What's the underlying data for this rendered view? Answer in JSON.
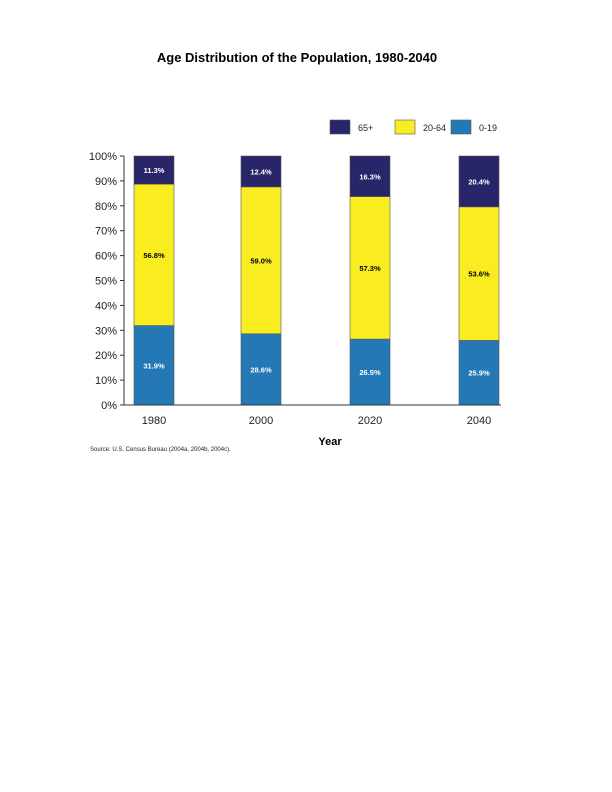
{
  "colors": {
    "65+": "#282668",
    "20-64": "#f9ec20",
    "0-19": "#2378b5",
    "axis": "#333333"
  },
  "chart_data": {
    "type": "bar",
    "stacked": true,
    "title": "Age Distribution of the Population, 1980-2040",
    "xlabel": "Year",
    "ylabel": "",
    "ylim": [
      0,
      100
    ],
    "yticks": [
      "0%",
      "10%",
      "20%",
      "30%",
      "40%",
      "50%",
      "60%",
      "70%",
      "80%",
      "90%",
      "100%"
    ],
    "categories": [
      "1980",
      "2000",
      "2020",
      "2040"
    ],
    "legend_position": "top-right",
    "series": [
      {
        "name": "0-19",
        "values": [
          31.9,
          28.6,
          26.5,
          25.9
        ],
        "labels": [
          "31.9%",
          "28.6%",
          "26.5%",
          "25.9%"
        ]
      },
      {
        "name": "20-64",
        "values": [
          56.8,
          59.0,
          57.3,
          53.6
        ],
        "labels": [
          "56.8%",
          "59.0%",
          "57.3%",
          "53.6%"
        ]
      },
      {
        "name": "65+",
        "values": [
          11.3,
          12.4,
          16.3,
          20.4
        ],
        "labels": [
          "11.3%",
          "12.4%",
          "16.3%",
          "20.4%"
        ]
      }
    ],
    "legend_order": [
      "65+",
      "20-64",
      "0-19"
    ],
    "source": "Source: U.S. Census Bureau (2004a, 2004b, 2004c)."
  }
}
